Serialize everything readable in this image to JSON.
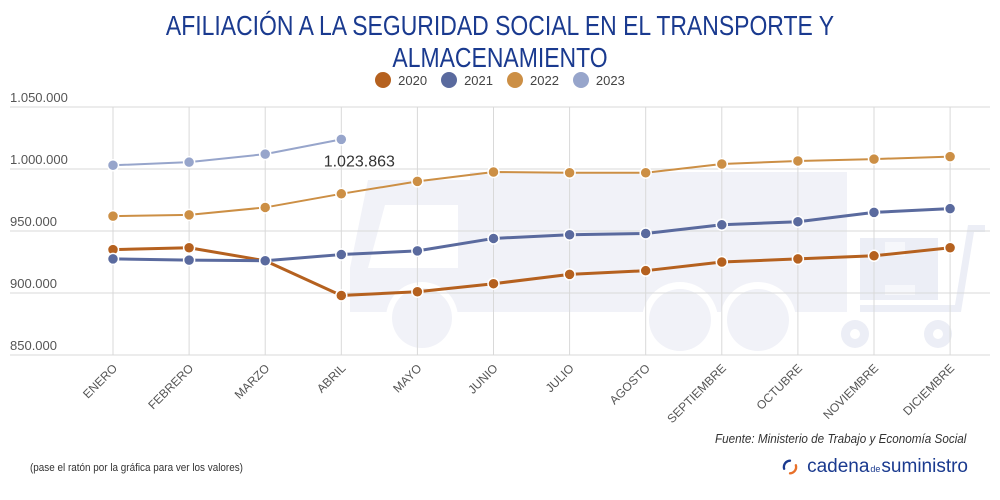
{
  "chart_data": {
    "type": "line",
    "title": "AFILIACIÓN A LA SEGURIDAD SOCIAL EN EL TRANSPORTE Y ALMACENAMIENTO",
    "xlabel": "",
    "ylabel": "",
    "categories": [
      "ENERO",
      "FEBRERO",
      "MARZO",
      "ABRIL",
      "MAYO",
      "JUNIO",
      "JULIO",
      "AGOSTO",
      "SEPTIEMBRE",
      "OCTUBRE",
      "NOVIEMBRE",
      "DICIEMBRE"
    ],
    "ylim": [
      850000,
      1050000
    ],
    "yticks": [
      850000,
      900000,
      950000,
      1000000,
      1050000
    ],
    "ytick_labels": [
      "850.000",
      "900.000",
      "950.000",
      "1.000.000",
      "1.050.000"
    ],
    "grid": true,
    "legend_position": "top-center",
    "series": [
      {
        "name": "2020",
        "color": "#b5611f",
        "values": [
          935000,
          936500,
          926000,
          898000,
          901000,
          907500,
          915000,
          918000,
          925000,
          927500,
          930000,
          936500
        ]
      },
      {
        "name": "2021",
        "color": "#5a6a9e",
        "values": [
          927500,
          926500,
          926000,
          931000,
          934000,
          944000,
          947000,
          948000,
          955000,
          957500,
          965000,
          968000
        ]
      },
      {
        "name": "2022",
        "color": "#cc8f45",
        "values": [
          962000,
          963000,
          969000,
          980000,
          990000,
          997600,
          997000,
          997000,
          1004000,
          1006500,
          1008000,
          1010000
        ]
      },
      {
        "name": "2023",
        "color": "#97a5cb",
        "values": [
          1003000,
          1005500,
          1012000,
          1023863
        ]
      }
    ],
    "annotations": [
      {
        "text": "1.023.863",
        "series": "2023",
        "category": "ABRIL"
      }
    ]
  },
  "footer": {
    "source": "Fuente: Ministerio de Trabajo y Economía Social",
    "hint": "(pase el ratón por la gráfica para ver los valores)",
    "brand_part1": "cadena",
    "brand_part2": "de",
    "brand_part3": "suministro"
  }
}
